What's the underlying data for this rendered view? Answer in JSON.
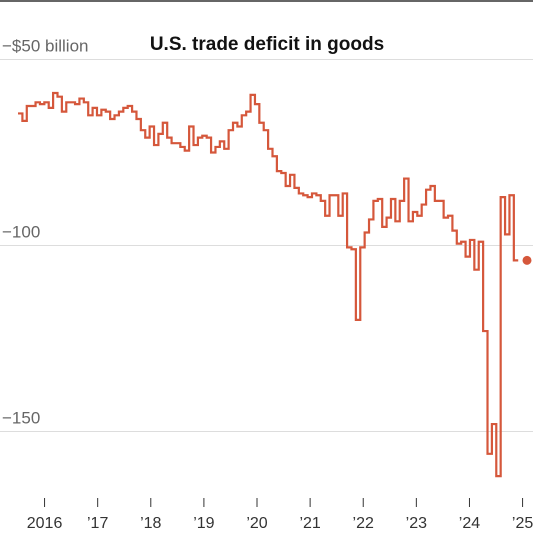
{
  "chart_data": {
    "type": "line",
    "title": "U.S. trade deficit in goods",
    "xlabel": "",
    "ylabel": "",
    "x_start": "2016-01",
    "x_end": "2025-08",
    "ylim": [
      -166,
      -34
    ],
    "yticks": [
      {
        "value": -50,
        "label": "−$50 billion"
      },
      {
        "value": -100,
        "label": "−100"
      },
      {
        "value": -150,
        "label": "−150"
      }
    ],
    "xticks": [
      {
        "value": "2016-07",
        "label": "2016"
      },
      {
        "value": "2017-07",
        "label": "’17"
      },
      {
        "value": "2018-07",
        "label": "’18"
      },
      {
        "value": "2019-07",
        "label": "’19"
      },
      {
        "value": "2020-07",
        "label": "’20"
      },
      {
        "value": "2021-07",
        "label": "’21"
      },
      {
        "value": "2022-07",
        "label": "’22"
      },
      {
        "value": "2023-07",
        "label": "’23"
      },
      {
        "value": "2024-07",
        "label": "’24"
      },
      {
        "value": "2025-07",
        "label": "’25"
      }
    ],
    "shaded_region": {
      "from": -34,
      "to": 0,
      "color": "#fdf0ee"
    },
    "grid": true,
    "colors": {
      "line": "#d5573b",
      "grid": "#dddddd",
      "axis": "#333333"
    },
    "series": [
      {
        "values": [
          -64.5,
          -66.5,
          -62.5,
          -62.5,
          -61.5,
          -62,
          -61.5,
          -63,
          -59,
          -60,
          -64,
          -61.5,
          -61.5,
          -62,
          -60.5,
          -61.5,
          -65,
          -63,
          -65,
          -63.5,
          -64,
          -66,
          -65,
          -64,
          -63,
          -62.5,
          -64,
          -66,
          -69,
          -71,
          -68,
          -73,
          -70,
          -67,
          -71,
          -72.5,
          -72.5,
          -73.5,
          -74.5,
          -68,
          -73,
          -71,
          -70.5,
          -71,
          -75,
          -73.5,
          -72,
          -74,
          -69,
          -67,
          -68,
          -65,
          -64,
          -59.5,
          -62,
          -67,
          -69,
          -74,
          -76,
          -80,
          -80.5,
          -84,
          -81,
          -84.5,
          -86,
          -86.5,
          -87,
          -86,
          -86.5,
          -88,
          -92,
          -86.5,
          -86.5,
          -92,
          -86,
          -100.5,
          -101,
          -120,
          -100.5,
          -96.5,
          -93,
          -88,
          -87.5,
          -95,
          -92.5,
          -87.5,
          -93.5,
          -88,
          -82,
          -93.5,
          -91,
          -92,
          -89,
          -85,
          -84,
          -88,
          -88,
          -92.5,
          -92,
          -96,
          -99.5,
          -99,
          -103,
          -98.5,
          -106.5,
          -99,
          -123,
          -156,
          -148,
          -162,
          -87,
          -97,
          -86.5,
          -104
        ]
      }
    ]
  }
}
